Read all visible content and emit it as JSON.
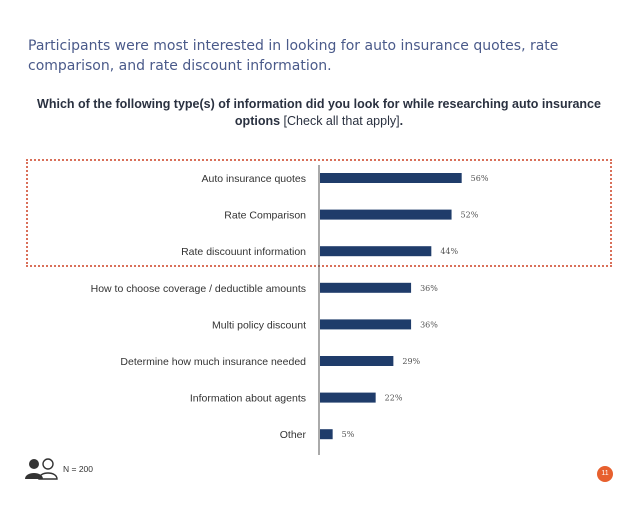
{
  "headline": "Participants were most interested in looking for auto insurance quotes, rate comparison, and rate discount information.",
  "question": {
    "main": "Which of the following type(s) of information did you look for while researching auto insurance options",
    "note": "[Check all that apply]",
    "end": "."
  },
  "footer": {
    "sample": "N = 200",
    "page_number": "11"
  },
  "colors": {
    "bar": "#1f3c6a",
    "highlight": "#d9705a",
    "badge": "#e7602e"
  },
  "chart_data": {
    "type": "bar",
    "orientation": "horizontal",
    "categories": [
      "Auto insurance quotes",
      "Rate Comparison",
      "Rate discouunt information",
      "How to choose coverage / deductible amounts",
      "Multi policy discount",
      "Determine how much insurance needed",
      "Information about agents",
      "Other"
    ],
    "values": [
      56,
      52,
      44,
      36,
      36,
      29,
      22,
      5
    ],
    "labels": [
      "56%",
      "52%",
      "44%",
      "36%",
      "36%",
      "29%",
      "22%",
      "5%"
    ],
    "unit": "%",
    "xlim": [
      0,
      100
    ],
    "grid": false,
    "highlighted_categories": [
      0,
      1,
      2
    ]
  }
}
